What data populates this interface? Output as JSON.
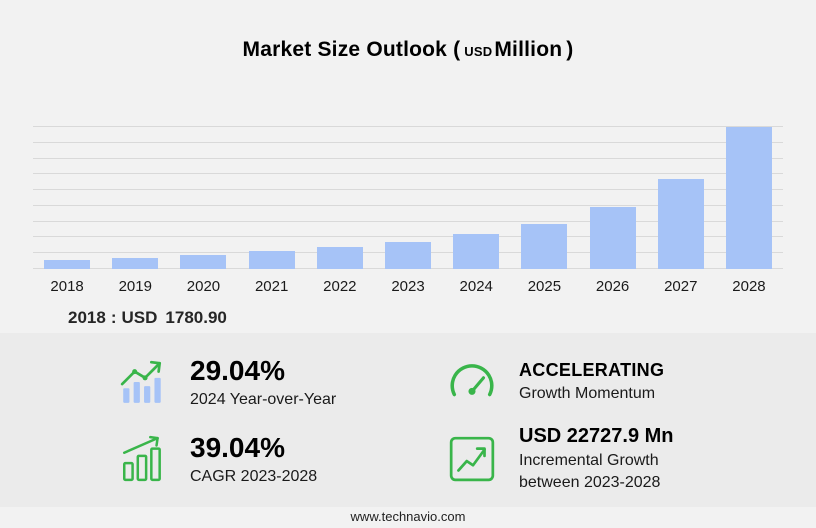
{
  "title": {
    "main": "Market Size Outlook",
    "paren_open": "(",
    "unit_small": "USD",
    "unit_big": "Million",
    "paren_close": ")"
  },
  "chart_data": {
    "type": "bar",
    "title": "Market Size Outlook (USD Million)",
    "categories": [
      "2018",
      "2019",
      "2020",
      "2021",
      "2022",
      "2023",
      "2024",
      "2025",
      "2026",
      "2027",
      "2028"
    ],
    "values": [
      1780.9,
      2250,
      2800,
      3500,
      4350,
      5416.4,
      6989.5,
      8950,
      12350,
      17800,
      28144.3
    ],
    "xlabel": "",
    "ylabel": "USD Million",
    "ylim": [
      0,
      28200
    ],
    "grid": true,
    "legend": "none",
    "bar_color": "#a6c3f7"
  },
  "baseline_note": {
    "year": "2018",
    "separator": ":",
    "currency": "USD",
    "value": "1780.90"
  },
  "stats": [
    {
      "icon": "bar-growth-icon",
      "value": "29.04%",
      "label": "2024 Year-over-Year"
    },
    {
      "icon": "speedometer-icon",
      "value": "ACCELERATING",
      "label": "Growth Momentum"
    },
    {
      "icon": "chart-box-icon",
      "value": "39.04%",
      "label": "CAGR 2023-2028"
    },
    {
      "icon": "line-growth-icon",
      "value": "USD 22727.9 Mn",
      "label": "Incremental Growth",
      "label2": "between 2023-2028"
    }
  ],
  "footer": {
    "url": "www.technavio.com"
  },
  "colors": {
    "accent_green": "#39b54a",
    "bar_blue": "#a6c3f7"
  }
}
